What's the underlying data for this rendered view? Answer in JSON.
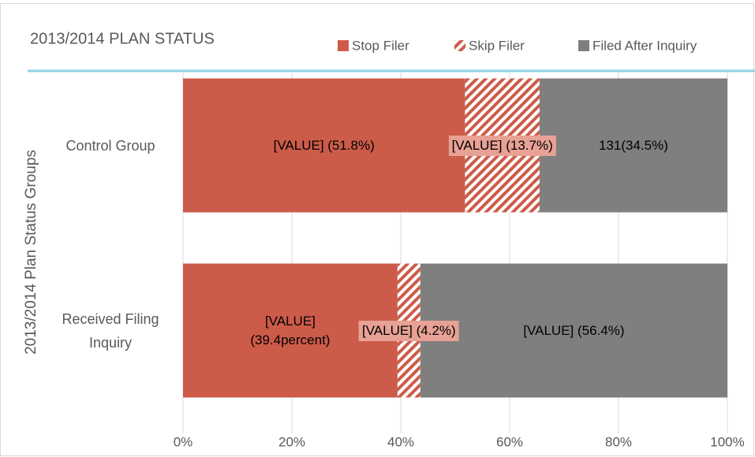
{
  "chart_data": {
    "type": "stacked_barh",
    "title": "2013/2014 PLAN STATUS",
    "y_label": "2013/2014 Plan Status Groups",
    "categories": [
      "Control Group",
      "Received Filing Inquiry"
    ],
    "series": [
      {
        "name": "Stop Filer",
        "color": "#cc5b4a",
        "values": [
          51.8,
          39.4
        ],
        "value_labels": [
          "[VALUE] (51.8%)",
          "[VALUE] (39.4percent)"
        ]
      },
      {
        "name": "Skip Filer",
        "color": "#cc5b4a",
        "hatch": true,
        "label_background": "#e8a195",
        "values": [
          13.7,
          4.2
        ],
        "value_labels": [
          "[VALUE] (13.7%)",
          "[VALUE] (4.2%)"
        ]
      },
      {
        "name": "Filed After Inquiry",
        "color": "#7f7f7f",
        "values": [
          34.5,
          56.4
        ],
        "value_labels": [
          "131(34.5%)",
          "[VALUE] (56.4%)"
        ]
      }
    ],
    "xlim": [
      0,
      100
    ],
    "xticks": [
      {
        "value": 0,
        "label": "0%"
      },
      {
        "value": 20,
        "label": "20%"
      },
      {
        "value": 40,
        "label": "40%"
      },
      {
        "value": 60,
        "label": "60%"
      },
      {
        "value": 80,
        "label": "80%"
      },
      {
        "value": 100,
        "label": "100%"
      }
    ],
    "grid": true,
    "legend": "top-right"
  }
}
